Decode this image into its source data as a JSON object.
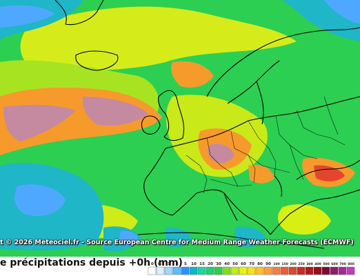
{
  "map": {
    "credit": "t © 2026 Meteociel.fr - Source European Centre for Medium Range Weather Forecasts (ECMWF)",
    "title": "e précipitations depuis +0h (mm)"
  },
  "legend": {
    "unit": "mm",
    "levels": [
      {
        "label": "0",
        "color": "#ffffff"
      },
      {
        "label": "0.5",
        "color": "#dcefff"
      },
      {
        "label": "1",
        "color": "#9fd9ff"
      },
      {
        "label": "2",
        "color": "#5cbcff"
      },
      {
        "label": "5",
        "color": "#2a92ff"
      },
      {
        "label": "10",
        "color": "#0fb7c8"
      },
      {
        "label": "15",
        "color": "#1bd6a0"
      },
      {
        "label": "20",
        "color": "#22ce6e"
      },
      {
        "label": "30",
        "color": "#2cd043"
      },
      {
        "label": "40",
        "color": "#7fe01c"
      },
      {
        "label": "50",
        "color": "#c0ee12"
      },
      {
        "label": "60",
        "color": "#e8f50e"
      },
      {
        "label": "70",
        "color": "#f6e21e"
      },
      {
        "label": "80",
        "color": "#f9c12e"
      },
      {
        "label": "90",
        "color": "#f99f3d"
      },
      {
        "label": "100",
        "color": "#f77f3b"
      },
      {
        "label": "150",
        "color": "#ef5e33"
      },
      {
        "label": "200",
        "color": "#e0442c"
      },
      {
        "label": "250",
        "color": "#c82a24"
      },
      {
        "label": "300",
        "color": "#b01a1c"
      },
      {
        "label": "400",
        "color": "#921018"
      },
      {
        "label": "500",
        "color": "#790b2e"
      },
      {
        "label": "600",
        "color": "#8c1d6e"
      },
      {
        "label": "700",
        "color": "#a52a9b"
      },
      {
        "label": "800",
        "color": "#c13ac7"
      }
    ]
  }
}
